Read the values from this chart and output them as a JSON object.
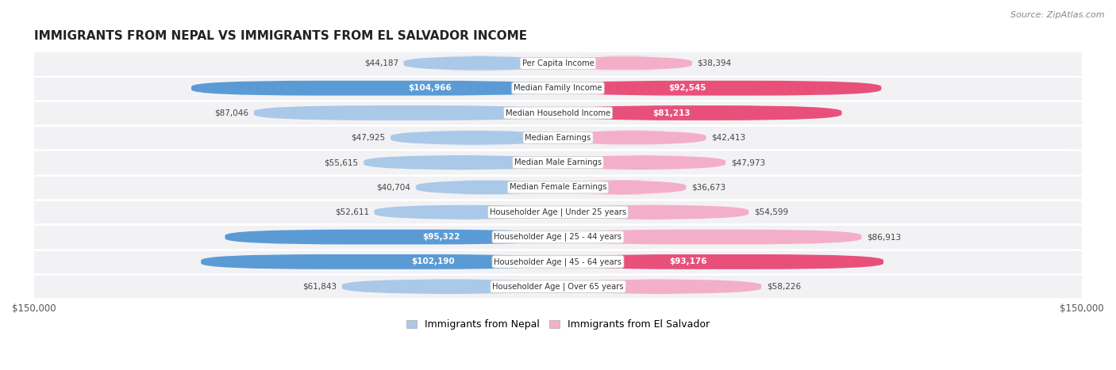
{
  "title": "IMMIGRANTS FROM NEPAL VS IMMIGRANTS FROM EL SALVADOR INCOME",
  "source": "Source: ZipAtlas.com",
  "categories": [
    "Per Capita Income",
    "Median Family Income",
    "Median Household Income",
    "Median Earnings",
    "Median Male Earnings",
    "Median Female Earnings",
    "Householder Age | Under 25 years",
    "Householder Age | 25 - 44 years",
    "Householder Age | 45 - 64 years",
    "Householder Age | Over 65 years"
  ],
  "nepal_values": [
    44187,
    104966,
    87046,
    47925,
    55615,
    40704,
    52611,
    95322,
    102190,
    61843
  ],
  "salvador_values": [
    38394,
    92545,
    81213,
    42413,
    47973,
    36673,
    54599,
    86913,
    93176,
    58226
  ],
  "nepal_color_light": "#aac9e8",
  "nepal_color_dark": "#5b9bd5",
  "salvador_color_light": "#f4afc8",
  "salvador_color_dark": "#e8507a",
  "nepal_label": "Immigrants from Nepal",
  "salvador_label": "Immigrants from El Salvador",
  "max_value": 150000,
  "nepal_white_label": [
    false,
    true,
    false,
    false,
    false,
    false,
    false,
    true,
    true,
    false
  ],
  "salvador_white_label": [
    false,
    true,
    true,
    false,
    false,
    false,
    false,
    false,
    true,
    false
  ]
}
